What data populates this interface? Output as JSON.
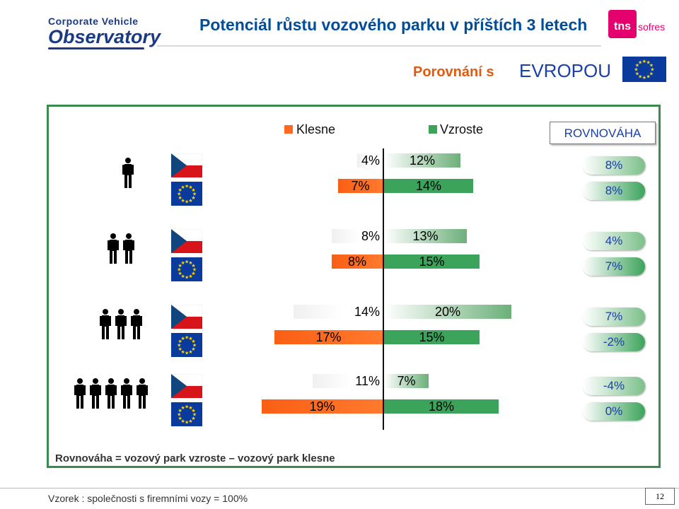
{
  "header": {
    "logo_line1": "Corporate Vehicle",
    "logo_line2": "Observatory",
    "title": "Potenciál růstu vozového parku v příštích 3 letech",
    "tns_logo": "tns",
    "tns_logo2": "sofres",
    "compare_prefix": "Porovnání s",
    "compare_region": "EVROPOU"
  },
  "legend": {
    "decrease": "Klesne",
    "increase": "Vzroste",
    "balance": "ROVNOVÁHA",
    "decrease_color": "#ff6a1f",
    "increase_color": "#3ca35b"
  },
  "chart_data": {
    "type": "bar",
    "orientation": "horizontal diverging",
    "categories": [
      "1 osoba",
      "2 osoby",
      "3 osoby",
      "5 osob"
    ],
    "icons": [
      "person-1",
      "person-2",
      "person-3",
      "person-5"
    ],
    "series": [
      {
        "name": "Klesne",
        "region": "CZ",
        "values": [
          4,
          8,
          14,
          11
        ]
      },
      {
        "name": "Vzroste",
        "region": "CZ",
        "values": [
          12,
          13,
          20,
          7
        ]
      },
      {
        "name": "Klesne",
        "region": "EU",
        "values": [
          7,
          8,
          17,
          19
        ]
      },
      {
        "name": "Vzroste",
        "region": "EU",
        "values": [
          14,
          15,
          15,
          18
        ]
      }
    ],
    "balance": {
      "CZ": [
        8,
        4,
        7,
        -4
      ],
      "EU": [
        8,
        7,
        -2,
        0
      ]
    },
    "labels": {
      "cz_dec": [
        "4%",
        "8%",
        "14%",
        "11%"
      ],
      "cz_inc": [
        "12%",
        "13%",
        "20%",
        "7%"
      ],
      "eu_dec": [
        "7%",
        "8%",
        "17%",
        "19%"
      ],
      "eu_inc": [
        "14%",
        "15%",
        "15%",
        "18%"
      ],
      "cz_bal": [
        "8%",
        "4%",
        "7%",
        "-4%"
      ],
      "eu_bal": [
        "8%",
        "7%",
        "-2%",
        "0%"
      ]
    }
  },
  "footnote": "Rovnováha = vozový park vzroste – vozový park klesne",
  "sample": "Vzorek : společnosti s firemními vozy = 100%",
  "page_number": "12"
}
